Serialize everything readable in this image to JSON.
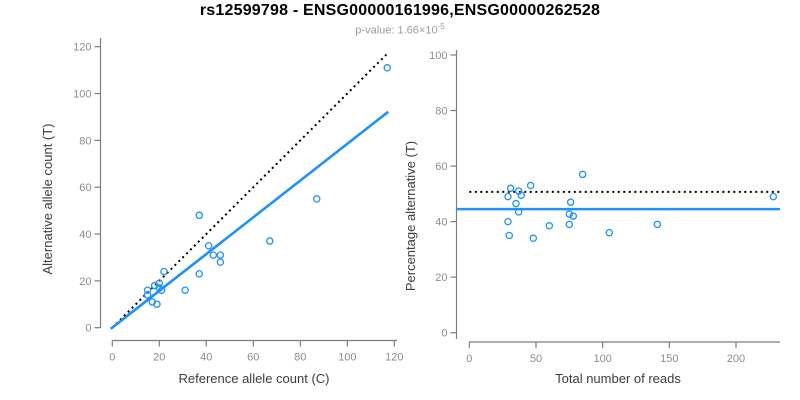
{
  "header": {
    "title": "rs12599798 - ENSG00000161996,ENSG00000262528",
    "subtitle_prefix": "p-value: 1.66×10",
    "subtitle_exponent": "-5"
  },
  "colors": {
    "accent": "#1E90FF",
    "identity": "#000000",
    "axis_line": "#7d7d7d",
    "tick_label": "#8c8c8c",
    "axis_title": "#3d3d3d",
    "title": "#000000",
    "subtitle": "#9b9b9b",
    "background": "#ffffff"
  },
  "chart_data": [
    {
      "type": "scatter",
      "name": "allele-counts-plot",
      "xlabel": "Reference allele count (C)",
      "ylabel": "Alternative allele count (T)",
      "xlim": [
        0,
        120
      ],
      "ylim": [
        0,
        120
      ],
      "xticks": [
        0,
        20,
        40,
        60,
        80,
        100,
        120
      ],
      "yticks": [
        0,
        20,
        40,
        60,
        80,
        100,
        120
      ],
      "grid": false,
      "legend": "none",
      "points": [
        [
          117,
          111
        ],
        [
          87,
          55
        ],
        [
          67,
          37
        ],
        [
          37,
          48
        ],
        [
          41,
          35
        ],
        [
          43,
          31
        ],
        [
          46,
          31
        ],
        [
          46,
          28
        ],
        [
          37,
          23
        ],
        [
          31,
          16
        ],
        [
          22,
          24
        ],
        [
          18,
          18
        ],
        [
          15,
          16
        ],
        [
          20,
          19
        ],
        [
          20,
          17
        ],
        [
          21,
          16
        ],
        [
          17,
          11
        ],
        [
          19,
          10
        ],
        [
          15,
          14
        ]
      ],
      "lines": [
        {
          "name": "identity-line",
          "style": "dotted",
          "color": "#000000",
          "from": [
            0,
            0
          ],
          "to": [
            117.5,
            117.5
          ]
        },
        {
          "name": "fit-line",
          "style": "solid",
          "color": "#1E90FF",
          "from": [
            -0.7,
            -0.5
          ],
          "to": [
            117.4,
            92.2
          ]
        }
      ]
    },
    {
      "type": "scatter",
      "name": "percentage-alternative-plot",
      "xlabel": "Total number of reads",
      "ylabel": "Percentage alternative (T)",
      "xlim": [
        0,
        232
      ],
      "ylim": [
        0,
        100
      ],
      "xticks": [
        0,
        50,
        100,
        150,
        200
      ],
      "yticks": [
        0,
        20,
        40,
        60,
        80,
        100
      ],
      "grid": false,
      "legend": "none",
      "points": [
        [
          31,
          52
        ],
        [
          37,
          51
        ],
        [
          29,
          49
        ],
        [
          39,
          49.5
        ],
        [
          46,
          53
        ],
        [
          35,
          46.5
        ],
        [
          37,
          43.5
        ],
        [
          85,
          57
        ],
        [
          76,
          47
        ],
        [
          75,
          42.7
        ],
        [
          78,
          42
        ],
        [
          75,
          39
        ],
        [
          60,
          38.5
        ],
        [
          29,
          40
        ],
        [
          30,
          35
        ],
        [
          48,
          34
        ],
        [
          105,
          36
        ],
        [
          141,
          39
        ],
        [
          228,
          49
        ]
      ],
      "lines": [
        {
          "name": "expected-50pct-line",
          "style": "dotted",
          "color": "#000000",
          "from": [
            0,
            50.7
          ],
          "to": [
            233,
            50.7
          ]
        },
        {
          "name": "mean-percentage-line",
          "style": "solid",
          "color": "#1E90FF",
          "from": [
            -9.5,
            44.5
          ],
          "to": [
            233,
            44.5
          ]
        }
      ]
    }
  ]
}
